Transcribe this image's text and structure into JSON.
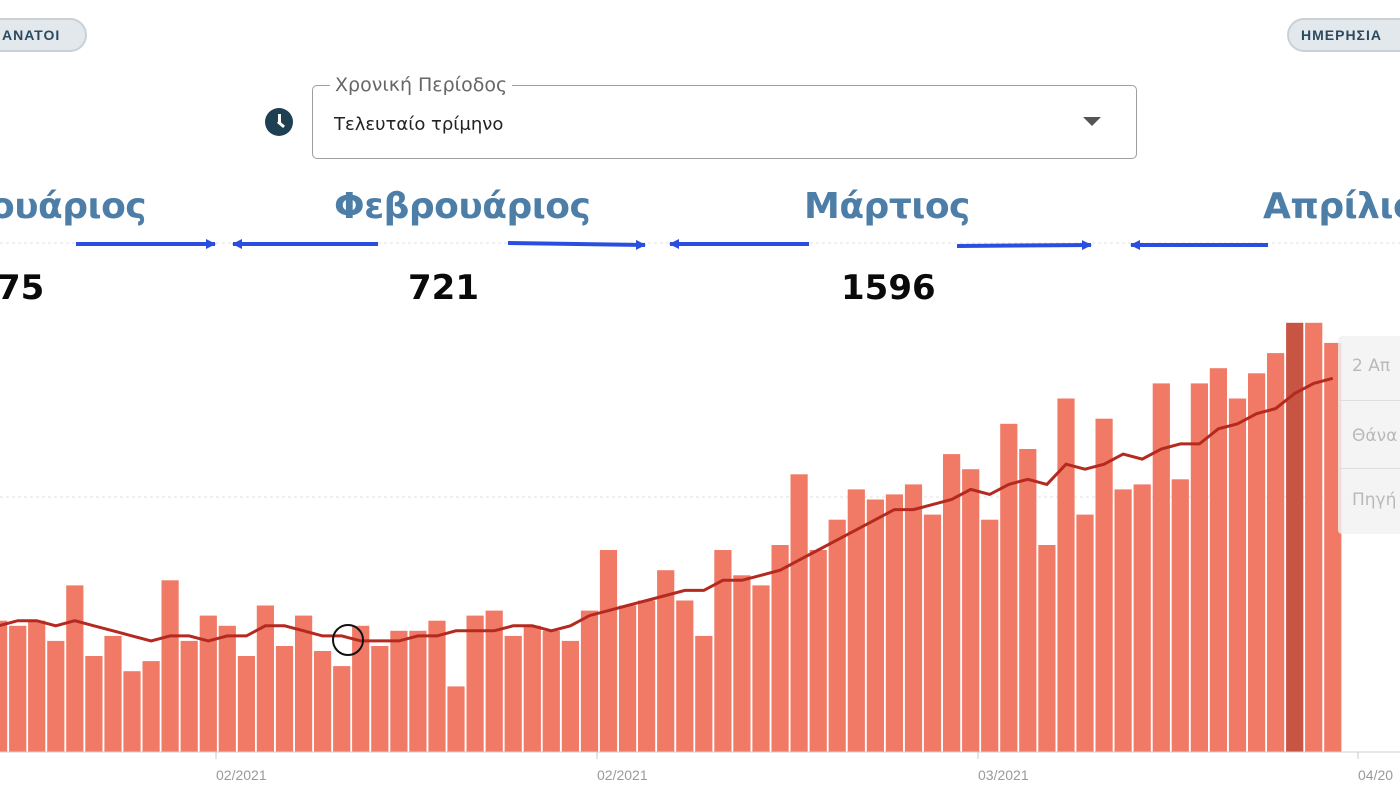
{
  "filters": {
    "left_chip_label": "ΑΝΑΤΟΙ",
    "right_chip_label": "ΗΜΕΡΗΣΙΑ"
  },
  "period_select": {
    "legend": "Χρονική Περίοδος",
    "value": "Τελευταίο τρίμηνο"
  },
  "icons": {
    "period": "clock-icon",
    "dropdown": "chevron-down-icon",
    "annotation_arrows": "arrow-icon"
  },
  "months": [
    {
      "label": "ουάριος"
    },
    {
      "label": "Φεβρουάριος"
    },
    {
      "label": "Μάρτιος"
    },
    {
      "label": "Απρίλιος"
    }
  ],
  "month_totals": [
    "75",
    "721",
    "1596"
  ],
  "tooltip": {
    "date": "2 Απ",
    "series": "Θάνα",
    "source": "Πηγή"
  },
  "colors": {
    "bar": "#f07a66",
    "bar_highlight": "#c85444",
    "line": "#b52a20",
    "accent": "#4d7ea8",
    "arrow": "#2a4fe0"
  },
  "chart_data": {
    "type": "bar",
    "series": [
      {
        "kind": "bar",
        "values": [
          26,
          25,
          26,
          22,
          33,
          19,
          23,
          16,
          18,
          34,
          22,
          27,
          25,
          19,
          29,
          21,
          27,
          20,
          17,
          25,
          21,
          24,
          24,
          26,
          13,
          27,
          28,
          23,
          25,
          24,
          22,
          28,
          40,
          29,
          30,
          36,
          30,
          23,
          40,
          35,
          33,
          41,
          55,
          40,
          46,
          52,
          50,
          51,
          53,
          47,
          59,
          56,
          46,
          65,
          60,
          41,
          70,
          47,
          66,
          52,
          53,
          73,
          54,
          73,
          76,
          70,
          75,
          79,
          85,
          85,
          81
        ]
      },
      {
        "kind": "line",
        "values": [
          25,
          26,
          26,
          25,
          26,
          25,
          24,
          23,
          22,
          23,
          23,
          22,
          23,
          23,
          25,
          25,
          24,
          23,
          23,
          22,
          22,
          22,
          23,
          23,
          24,
          24,
          24,
          25,
          25,
          24,
          25,
          27,
          28,
          29,
          30,
          31,
          32,
          32,
          34,
          34,
          35,
          36,
          38,
          40,
          42,
          44,
          46,
          48,
          48,
          49,
          50,
          52,
          51,
          53,
          54,
          53,
          57,
          56,
          57,
          59,
          58,
          60,
          61,
          61,
          64,
          65,
          67,
          68,
          71,
          73,
          74
        ]
      }
    ],
    "highlight_index": 68,
    "x_tick_labels": [
      "02/2021",
      "02/2021",
      "03/2021",
      "04/20"
    ],
    "grid": "horizontal dashed",
    "title": "",
    "xlabel": "",
    "ylabel": ""
  }
}
